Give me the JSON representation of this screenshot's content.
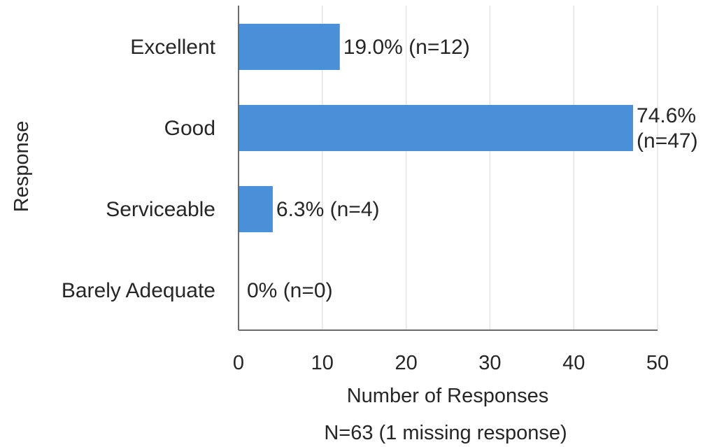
{
  "chart_data": {
    "type": "bar",
    "orientation": "horizontal",
    "categories": [
      "Excellent",
      "Good",
      "Serviceable",
      "Barely Adequate"
    ],
    "values": [
      12,
      47,
      4,
      0
    ],
    "data_labels": [
      "19.0% (n=12)",
      "74.6% (n=47)",
      "6.3% (n=4)",
      "0% (n=0)"
    ],
    "xlabel": "Number of Responses",
    "ylabel": "Response",
    "note": "N=63 (1 missing response)",
    "xlim": [
      0,
      50
    ],
    "xticks": [
      0,
      10,
      20,
      30,
      40,
      50
    ],
    "grid": true,
    "legend": "none",
    "bar_color": "#4a90d9"
  }
}
